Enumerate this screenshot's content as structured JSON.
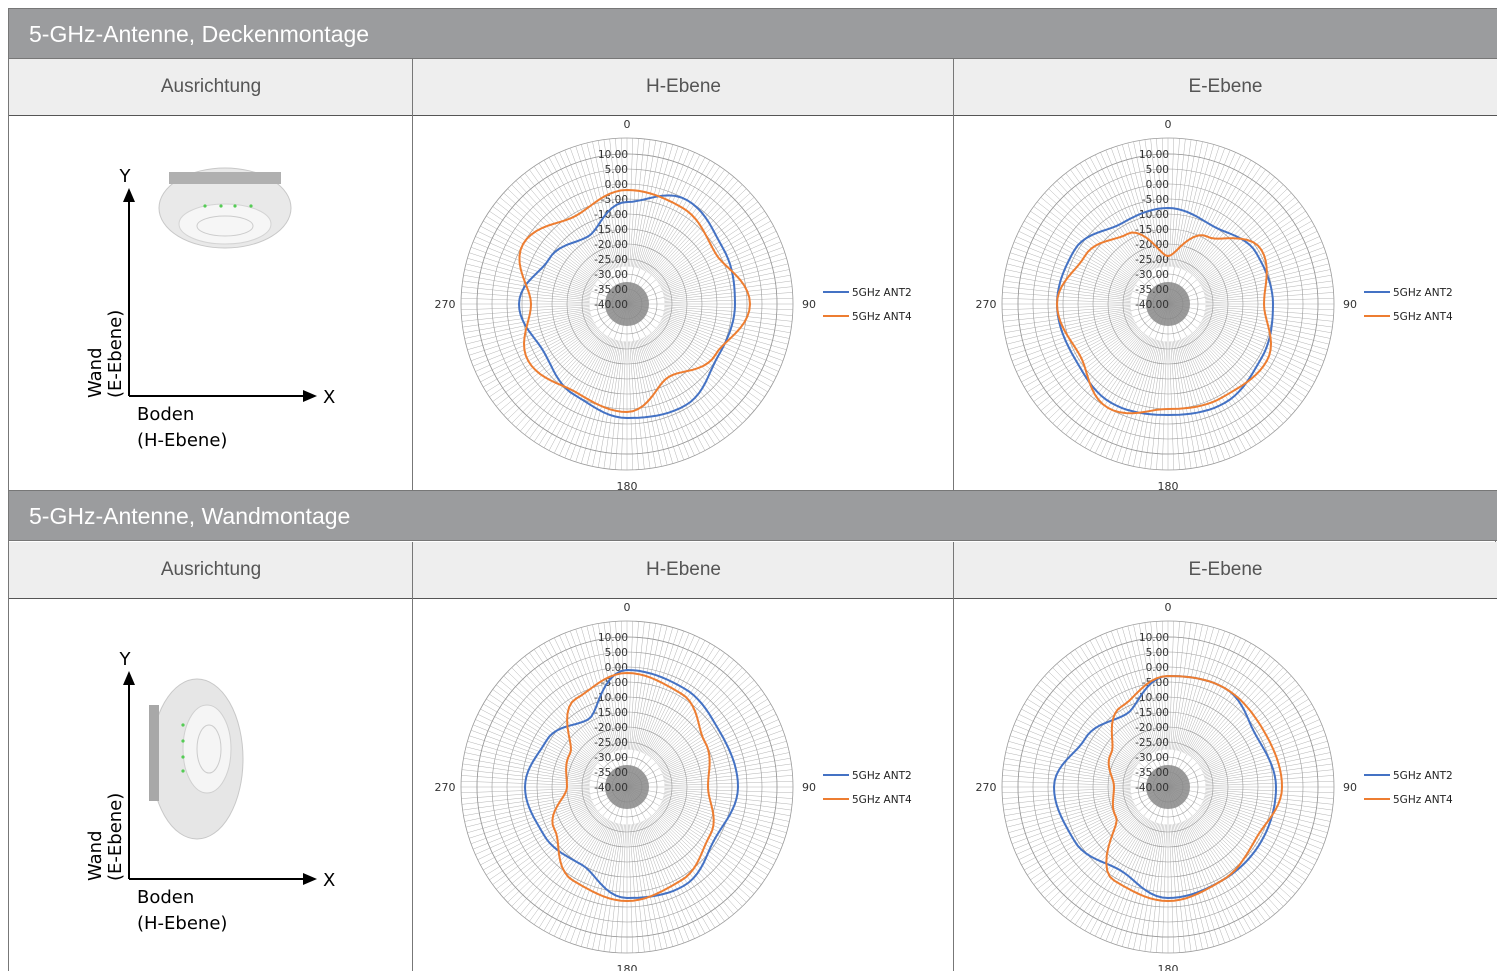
{
  "sections": [
    {
      "title": "5-GHz-Antenne, Deckenmontage",
      "col_headers": [
        "Ausrichtung",
        "H-Ebene",
        "E-Ebene"
      ],
      "orientation": {
        "y_label": "Y",
        "x_label": "X",
        "wall_label_1": "Wand",
        "wall_label_2": "(E-Ebene)",
        "floor_label_1": "Boden",
        "floor_label_2": "(H-Ebene)",
        "device_view": "ceiling"
      }
    },
    {
      "title": "5-GHz-Antenne, Wandmontage",
      "col_headers": [
        "Ausrichtung",
        "H-Ebene",
        "E-Ebene"
      ],
      "orientation": {
        "y_label": "Y",
        "x_label": "X",
        "wall_label_1": "Wand",
        "wall_label_2": "(E-Ebene)",
        "floor_label_1": "Boden",
        "floor_label_2": "(H-Ebene)",
        "device_view": "wall"
      }
    }
  ],
  "chart_data": [
    {
      "type": "polar-line",
      "plane": "H-Ebene",
      "mount": "Deckenmontage",
      "r_ticks": [
        "10.00",
        "5.00",
        "0.00",
        "-5.00",
        "-10.00",
        "-15.00",
        "-20.00",
        "-25.00",
        "-30.00",
        "-35.00",
        "-40.00"
      ],
      "r_range": [
        -40,
        10
      ],
      "angle_labels": [
        "0",
        "90",
        "180",
        "270"
      ],
      "series": [
        {
          "name": "5GHz ANT2",
          "color": "#4472c4",
          "angles": [
            0,
            30,
            60,
            90,
            120,
            150,
            180,
            210,
            240,
            270,
            300,
            330
          ],
          "values": [
            -6,
            0,
            -3,
            -4,
            -5,
            -1,
            -2,
            -5,
            -8,
            -4,
            -10,
            -14
          ]
        },
        {
          "name": "5GHz ANT4",
          "color": "#ed7d31",
          "angles": [
            0,
            30,
            60,
            90,
            120,
            150,
            180,
            210,
            240,
            270,
            300,
            330
          ],
          "values": [
            -2,
            -3,
            -6,
            1,
            -6,
            -12,
            -4,
            -6,
            -2,
            -8,
            0,
            -6
          ]
        }
      ]
    },
    {
      "type": "polar-line",
      "plane": "E-Ebene",
      "mount": "Deckenmontage",
      "r_ticks": [
        "10.00",
        "5.00",
        "0.00",
        "-5.00",
        "-10.00",
        "-15.00",
        "-20.00",
        "-25.00",
        "-30.00",
        "-35.00",
        "-40.00"
      ],
      "r_range": [
        -40,
        10
      ],
      "angle_labels": [
        "0",
        "90",
        "180",
        "270"
      ],
      "series": [
        {
          "name": "5GHz ANT2",
          "color": "#4472c4",
          "angles": [
            0,
            30,
            60,
            90,
            120,
            150,
            180,
            210,
            240,
            270,
            300,
            330
          ],
          "values": [
            -8,
            -10,
            -6,
            -5,
            -4,
            -2,
            -3,
            -2,
            -4,
            -3,
            -4,
            -9
          ]
        },
        {
          "name": "5GHz ANT4",
          "color": "#ed7d31",
          "angles": [
            0,
            30,
            60,
            90,
            120,
            150,
            180,
            210,
            240,
            270,
            300,
            330
          ],
          "values": [
            -24,
            -14,
            -4,
            -8,
            -2,
            -4,
            -5,
            0,
            -6,
            -3,
            -8,
            -13
          ]
        }
      ]
    },
    {
      "type": "polar-line",
      "plane": "H-Ebene",
      "mount": "Wandmontage",
      "r_ticks": [
        "10.00",
        "5.00",
        "0.00",
        "-5.00",
        "-10.00",
        "-15.00",
        "-20.00",
        "-25.00",
        "-30.00",
        "-35.00",
        "-40.00"
      ],
      "r_range": [
        -40,
        10
      ],
      "angle_labels": [
        "0",
        "90",
        "180",
        "270"
      ],
      "series": [
        {
          "name": "5GHz ANT2",
          "color": "#4472c4",
          "angles": [
            0,
            30,
            60,
            90,
            120,
            150,
            180,
            210,
            240,
            270,
            300,
            330
          ],
          "values": [
            -1,
            -2,
            -4,
            -3,
            -6,
            -2,
            -3,
            -10,
            -8,
            -6,
            -9,
            -14
          ]
        },
        {
          "name": "5GHz ANT4",
          "color": "#ed7d31",
          "angles": [
            0,
            30,
            60,
            90,
            120,
            150,
            180,
            210,
            240,
            270,
            300,
            330
          ],
          "values": [
            -2,
            -4,
            -10,
            -13,
            -8,
            -4,
            -2,
            -4,
            -12,
            -20,
            -18,
            -6
          ]
        }
      ]
    },
    {
      "type": "polar-line",
      "plane": "E-Ebene",
      "mount": "Wandmontage",
      "r_ticks": [
        "10.00",
        "5.00",
        "0.00",
        "-5.00",
        "-10.00",
        "-15.00",
        "-20.00",
        "-25.00",
        "-30.00",
        "-35.00",
        "-40.00"
      ],
      "r_range": [
        -40,
        10
      ],
      "angle_labels": [
        "0",
        "90",
        "180",
        "270"
      ],
      "series": [
        {
          "name": "5GHz ANT2",
          "color": "#4472c4",
          "angles": [
            0,
            30,
            60,
            90,
            120,
            150,
            180,
            210,
            240,
            270,
            300,
            330
          ],
          "values": [
            -3,
            -2,
            -6,
            -4,
            -4,
            -4,
            -3,
            -8,
            -4,
            -2,
            -8,
            -12
          ]
        },
        {
          "name": "5GHz ANT4",
          "color": "#ed7d31",
          "angles": [
            0,
            30,
            60,
            90,
            120,
            150,
            180,
            210,
            240,
            270,
            300,
            330
          ],
          "values": [
            -3,
            -2,
            -3,
            -2,
            -6,
            -4,
            -2,
            -4,
            -20,
            -22,
            -18,
            -9
          ]
        }
      ]
    }
  ]
}
